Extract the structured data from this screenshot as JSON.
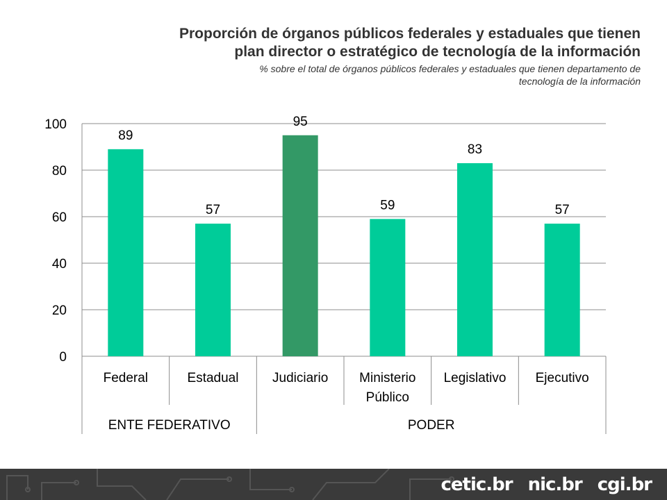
{
  "header": {
    "title_line1": "Proporción de órganos públicos federales y estaduales que tienen",
    "title_line2": "plan director o estratégico de tecnología de la información",
    "subtitle_line1": "% sobre el total de órganos públicos federales y estaduales que tienen departamento de",
    "subtitle_line2": "tecnología de la información"
  },
  "chart_data": {
    "type": "bar",
    "categories": [
      "Federal",
      "Estadual",
      "Judiciario",
      "Ministerio Público",
      "Legislativo",
      "Ejecutivo"
    ],
    "category_lines": [
      [
        "Federal"
      ],
      [
        "Estadual"
      ],
      [
        "Judiciario"
      ],
      [
        "Ministerio",
        "Público"
      ],
      [
        "Legislativo"
      ],
      [
        "Ejecutivo"
      ]
    ],
    "values": [
      89,
      57,
      95,
      59,
      83,
      57
    ],
    "data_labels": [
      "89",
      "57",
      "95",
      "59",
      "83",
      "57"
    ],
    "groups": [
      {
        "label": "ENTE FEDERATIVO",
        "start": 0,
        "end": 1
      },
      {
        "label": "PODER",
        "start": 2,
        "end": 5
      }
    ],
    "ylim": [
      0,
      100
    ],
    "yticks": [
      0,
      20,
      40,
      60,
      80,
      100
    ],
    "ytick_labels": [
      "0",
      "20",
      "40",
      "60",
      "80",
      "100"
    ],
    "grid": true,
    "legend": "none",
    "colors": {
      "bar": "#00cc99",
      "highlight": "#339966",
      "highlight_index": 2,
      "grid": "#8c8c8c"
    }
  },
  "footer": {
    "logo1": "cetic.br",
    "logo2": "nic.br",
    "logo3": "cgi.br",
    "background": "#3a3a3a"
  }
}
